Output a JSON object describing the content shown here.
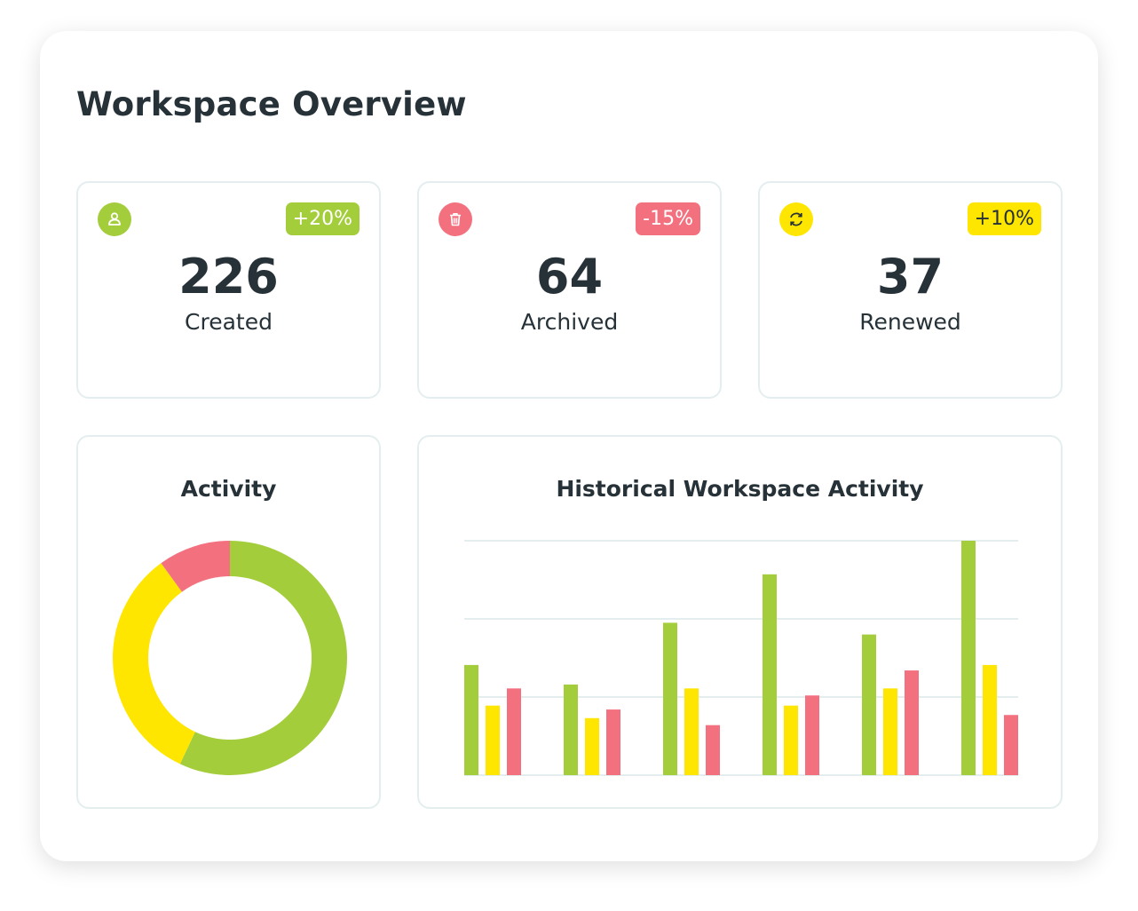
{
  "title": "Workspace Overview",
  "colors": {
    "green": "#a3cd3b",
    "yellow": "#ffe600",
    "red": "#f3717f",
    "text": "#263238",
    "grid": "#e4eeef"
  },
  "stats": [
    {
      "icon": "user-icon",
      "value": "226",
      "label": "Created",
      "change": "+20%",
      "color": "#a3cd3b",
      "badge_text_color": "#ffffff"
    },
    {
      "icon": "trash-icon",
      "value": "64",
      "label": "Archived",
      "change": "-15%",
      "color": "#f3717f",
      "badge_text_color": "#ffffff"
    },
    {
      "icon": "refresh-icon",
      "value": "37",
      "label": "Renewed",
      "change": "+10%",
      "color": "#ffe600",
      "badge_text_color": "#263238"
    }
  ],
  "activity": {
    "title": "Activity",
    "chart_data": {
      "type": "pie",
      "donut": true,
      "values": [
        57,
        33,
        10
      ],
      "colors": [
        "#a3cd3b",
        "#ffe600",
        "#f3717f"
      ]
    }
  },
  "history": {
    "title": "Historical Workspace Activity",
    "chart_data": {
      "type": "bar",
      "ylim": [
        0,
        300
      ],
      "grid": true,
      "gridlines": [
        0,
        100,
        200,
        300
      ],
      "categories": [
        "",
        "",
        "",
        "",
        "",
        ""
      ],
      "series": [
        {
          "color": "#a3cd3b",
          "values": [
            141,
            116,
            195,
            257,
            180,
            300
          ]
        },
        {
          "color": "#ffe600",
          "values": [
            89,
            73,
            111,
            89,
            111,
            141
          ]
        },
        {
          "color": "#f3717f",
          "values": [
            111,
            84,
            64,
            102,
            134,
            77
          ]
        }
      ]
    }
  }
}
